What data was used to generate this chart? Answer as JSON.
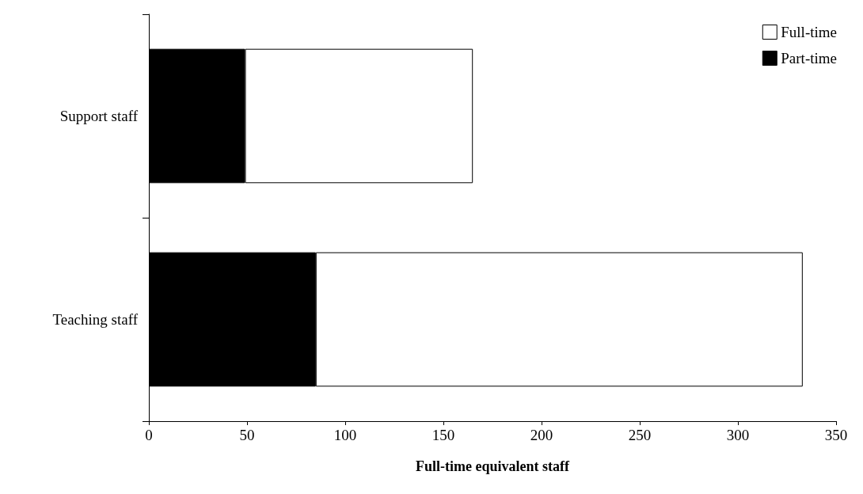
{
  "chart_data": {
    "type": "bar",
    "orientation": "horizontal",
    "stacked": true,
    "categories": [
      "Support staff",
      "Teaching staff"
    ],
    "series": [
      {
        "name": "Part-time",
        "color": "#000000",
        "values": [
          49,
          85
        ]
      },
      {
        "name": "Full-time",
        "color": "#ffffff",
        "values": [
          116,
          248
        ]
      }
    ],
    "xlabel": "Full-time equivalent staff",
    "xlim": [
      0,
      350
    ],
    "xticks": [
      0,
      50,
      100,
      150,
      200,
      250,
      300,
      350
    ],
    "grid": false,
    "legend": "top right"
  }
}
